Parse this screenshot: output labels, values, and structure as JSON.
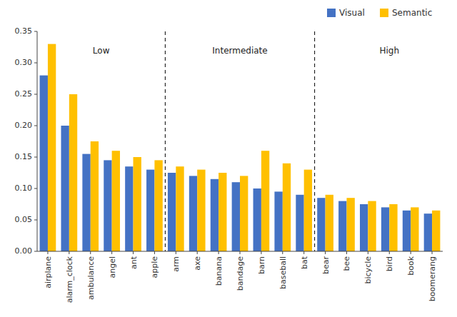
{
  "chart_data": {
    "type": "bar",
    "categories": [
      "airplane",
      "alarm_clock",
      "ambulance",
      "angel",
      "ant",
      "apple",
      "arm",
      "axe",
      "banana",
      "bandage",
      "barn",
      "baseball",
      "bat",
      "bear",
      "bee",
      "bicycle",
      "bird",
      "book",
      "boomerang"
    ],
    "series": [
      {
        "name": "Visual",
        "color": "#4472c4",
        "values": [
          0.28,
          0.2,
          0.155,
          0.145,
          0.135,
          0.13,
          0.125,
          0.12,
          0.115,
          0.11,
          0.1,
          0.095,
          0.09,
          0.085,
          0.08,
          0.075,
          0.07,
          0.065,
          0.06
        ]
      },
      {
        "name": "Semantic",
        "color": "#ffc000",
        "values": [
          0.33,
          0.25,
          0.175,
          0.16,
          0.15,
          0.145,
          0.135,
          0.13,
          0.125,
          0.12,
          0.16,
          0.14,
          0.13,
          0.09,
          0.085,
          0.08,
          0.075,
          0.07,
          0.065
        ]
      }
    ],
    "ylim": [
      0,
      0.35
    ],
    "yticks": [
      {
        "value": 0,
        "label": "0.00"
      },
      0.05,
      {
        "value": 0.1,
        "label": "0.10"
      },
      0.15,
      {
        "value": 0.2,
        "label": "0.20"
      },
      0.25,
      {
        "value": 0.3,
        "label": "0.30"
      },
      0.35
    ],
    "vlines": [
      5.5,
      12.5
    ],
    "annotations": [
      {
        "text": "Low",
        "x": 2.5,
        "y": 0.315
      },
      {
        "text": "Intermediate",
        "x": 9,
        "y": 0.315
      },
      {
        "text": "High",
        "x": 16,
        "y": 0.315
      }
    ],
    "legend": "upper right",
    "grid": false
  }
}
